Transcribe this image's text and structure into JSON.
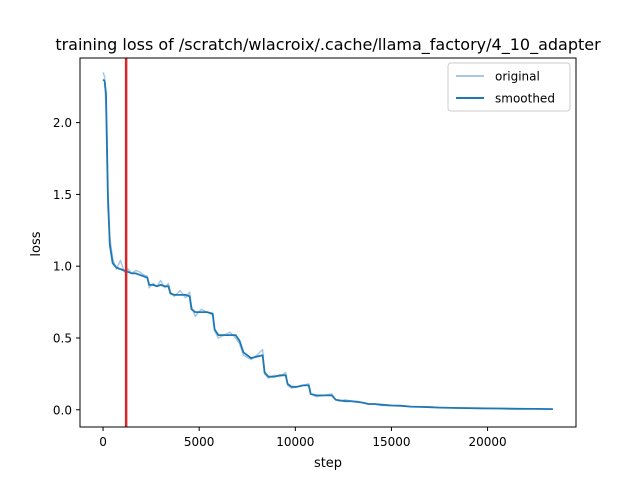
{
  "chart_data": {
    "type": "line",
    "title": "training loss of /scratch/wlacroix/.cache/llama_factory/4_10_adapter",
    "xlabel": "step",
    "ylabel": "loss",
    "xlim": [
      -1200,
      24600
    ],
    "ylim": [
      -0.12,
      2.45
    ],
    "xticks": [
      0,
      5000,
      10000,
      15000,
      20000
    ],
    "xtick_labels": [
      "0",
      "5000",
      "10000",
      "15000",
      "20000"
    ],
    "yticks": [
      0.0,
      0.5,
      1.0,
      1.5,
      2.0
    ],
    "ytick_labels": [
      "0.0",
      "0.5",
      "1.0",
      "1.5",
      "2.0"
    ],
    "legend_position": "top-right",
    "series": [
      {
        "name": "original",
        "color": "#a6c8e3",
        "x": [
          0,
          80,
          150,
          250,
          350,
          500,
          700,
          900,
          1100,
          1300,
          1500,
          1700,
          1900,
          2100,
          2300,
          2400,
          2600,
          2800,
          3000,
          3200,
          3400,
          3500,
          3700,
          4000,
          4300,
          4500,
          4600,
          4800,
          5100,
          5400,
          5700,
          5800,
          6000,
          6300,
          6600,
          6900,
          7100,
          7300,
          7700,
          8000,
          8300,
          8400,
          8600,
          8900,
          9200,
          9500,
          9600,
          9800,
          10100,
          10400,
          10700,
          10800,
          11100,
          11500,
          11900,
          12100,
          12300,
          12600,
          12900,
          13200,
          13500,
          13800,
          14100,
          14500,
          15000,
          15500,
          16000,
          16500,
          17000,
          17500,
          18500,
          19500,
          20500,
          21500,
          22500,
          23400
        ],
        "y": [
          2.35,
          2.32,
          2.1,
          1.4,
          1.2,
          1.05,
          0.98,
          1.04,
          0.96,
          0.98,
          0.95,
          0.97,
          0.96,
          0.94,
          0.93,
          0.85,
          0.88,
          0.86,
          0.9,
          0.85,
          0.88,
          0.82,
          0.79,
          0.83,
          0.78,
          0.82,
          0.72,
          0.65,
          0.7,
          0.68,
          0.66,
          0.55,
          0.5,
          0.52,
          0.54,
          0.5,
          0.46,
          0.38,
          0.35,
          0.38,
          0.42,
          0.25,
          0.22,
          0.24,
          0.23,
          0.26,
          0.17,
          0.15,
          0.16,
          0.17,
          0.18,
          0.11,
          0.09,
          0.1,
          0.11,
          0.07,
          0.06,
          0.07,
          0.06,
          0.06,
          0.05,
          0.04,
          0.04,
          0.03,
          0.03,
          0.03,
          0.02,
          0.02,
          0.02,
          0.015,
          0.012,
          0.01,
          0.01,
          0.008,
          0.006,
          0.005
        ]
      },
      {
        "name": "smoothed",
        "color": "#1f77b4",
        "x": [
          0,
          80,
          150,
          250,
          350,
          500,
          700,
          900,
          1100,
          1300,
          1500,
          1700,
          1900,
          2100,
          2300,
          2400,
          2600,
          2800,
          3000,
          3200,
          3400,
          3500,
          3700,
          4000,
          4300,
          4500,
          4600,
          4800,
          5100,
          5400,
          5700,
          5800,
          6000,
          6300,
          6600,
          6900,
          7100,
          7300,
          7700,
          8000,
          8300,
          8400,
          8600,
          8900,
          9200,
          9500,
          9600,
          9800,
          10100,
          10400,
          10700,
          10800,
          11100,
          11500,
          11900,
          12100,
          12300,
          12600,
          12900,
          13200,
          13500,
          13800,
          14100,
          14500,
          15000,
          15500,
          16000,
          16500,
          17000,
          17500,
          18500,
          19500,
          20500,
          21500,
          22500,
          23400
        ],
        "y": [
          2.3,
          2.29,
          2.2,
          1.5,
          1.15,
          1.02,
          0.99,
          0.98,
          0.97,
          0.96,
          0.95,
          0.95,
          0.94,
          0.93,
          0.92,
          0.87,
          0.87,
          0.86,
          0.87,
          0.86,
          0.86,
          0.81,
          0.8,
          0.8,
          0.8,
          0.79,
          0.7,
          0.68,
          0.68,
          0.68,
          0.67,
          0.56,
          0.52,
          0.52,
          0.52,
          0.52,
          0.48,
          0.4,
          0.36,
          0.37,
          0.38,
          0.26,
          0.23,
          0.23,
          0.24,
          0.24,
          0.18,
          0.16,
          0.16,
          0.17,
          0.17,
          0.11,
          0.1,
          0.1,
          0.1,
          0.07,
          0.065,
          0.06,
          0.06,
          0.055,
          0.05,
          0.04,
          0.04,
          0.035,
          0.03,
          0.028,
          0.022,
          0.02,
          0.018,
          0.015,
          0.012,
          0.01,
          0.009,
          0.007,
          0.006,
          0.005
        ]
      }
    ],
    "annotations": [
      {
        "type": "vline",
        "x": 1200,
        "color": "#d62728"
      }
    ]
  }
}
